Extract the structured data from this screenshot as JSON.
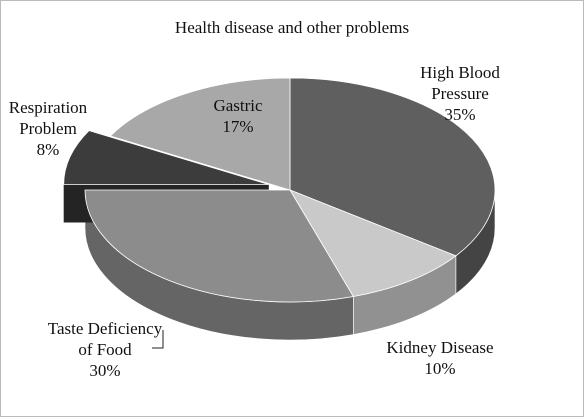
{
  "chart_data": {
    "type": "pie",
    "title": "Health disease and other problems",
    "categories": [
      "High Blood Pressure",
      "Kidney Disease",
      "Taste Deficiency of Food",
      "Respiration Problem",
      "Gastric"
    ],
    "values": [
      35,
      10,
      30,
      8,
      17
    ],
    "value_labels": [
      "35%",
      "10%",
      "30%",
      "8%",
      "17%"
    ],
    "colors": [
      "#5f5f5f",
      "#c9c9c9",
      "#8c8c8c",
      "#3c3c3c",
      "#a8a8a8"
    ]
  }
}
